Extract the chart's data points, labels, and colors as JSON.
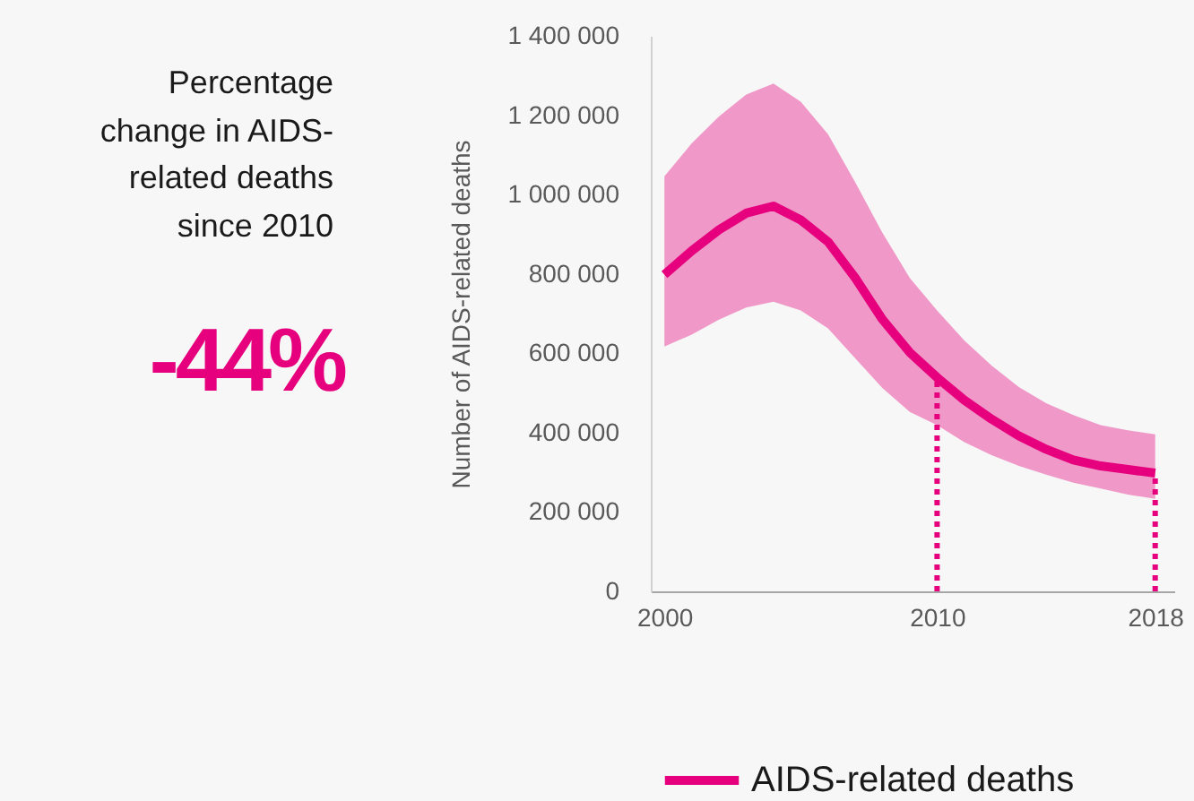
{
  "chart_data": {
    "type": "line",
    "ylabel": "Number of AIDS-related deaths",
    "annotations": [
      "Percentage change in AIDS-related deaths since 2010",
      "-44%"
    ],
    "x": [
      2000,
      2001,
      2002,
      2003,
      2004,
      2005,
      2006,
      2007,
      2008,
      2009,
      2010,
      2011,
      2012,
      2013,
      2014,
      2015,
      2016,
      2017,
      2018
    ],
    "series": [
      {
        "name": "AIDS-related deaths",
        "color": "#e6007e",
        "values": [
          798000,
          858000,
          911000,
          953000,
          971000,
          936000,
          881000,
          790000,
          685000,
          602000,
          539000,
          482000,
          434000,
          392000,
          358000,
          331000,
          316000,
          307000,
          298000
        ],
        "lower": [
          617000,
          647000,
          685000,
          715000,
          730000,
          708000,
          663000,
          587000,
          512000,
          452000,
          419000,
          376000,
          343000,
          316000,
          294000,
          274000,
          259000,
          244000,
          233000
        ],
        "upper": [
          1046000,
          1129000,
          1197000,
          1252000,
          1280000,
          1234000,
          1152000,
          1031000,
          903000,
          790000,
          708000,
          632000,
          569000,
          515000,
          474000,
          444000,
          419000,
          406000,
          396000
        ]
      }
    ],
    "xlim": [
      1999.5,
      2018.7
    ],
    "xticks": [
      2000,
      2010,
      2018
    ],
    "ylim": [
      0,
      1400000
    ],
    "yticks": [
      {
        "value": 0,
        "label": "0"
      },
      {
        "value": 200000,
        "label": "200 000"
      },
      {
        "value": 400000,
        "label": "400 000"
      },
      {
        "value": 600000,
        "label": "600 000"
      },
      {
        "value": 800000,
        "label": "800 000"
      },
      {
        "value": 1000000,
        "label": "1 000 000"
      },
      {
        "value": 1200000,
        "label": "1 200 000"
      },
      {
        "value": 1400000,
        "label": "1 400 000"
      }
    ],
    "ref_lines": [
      {
        "axis": "x",
        "value": 2010,
        "color": "#e6007e",
        "line_style": "dotted"
      },
      {
        "axis": "x",
        "value": 2018,
        "color": "#e6007e",
        "line_style": "dotted"
      }
    ],
    "legend": "bottom",
    "grid": false,
    "marker": "none",
    "line_style": "solid"
  }
}
